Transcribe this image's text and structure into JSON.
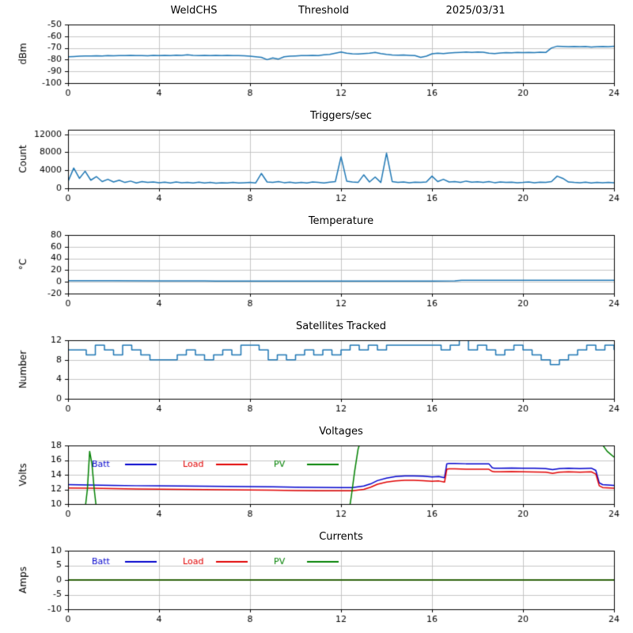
{
  "header": {
    "station": "WeldCHS",
    "mode": "Threshold",
    "date": "2025/03/31"
  },
  "colors": {
    "signal": "#1f77b4",
    "batt": "#0000cc",
    "load": "#e00000",
    "pv": "#008000",
    "grid": "#b8b8b8",
    "frame": "#000000"
  },
  "chart_data": [
    {
      "id": "dbm",
      "type": "line",
      "title": "",
      "ylabel": "dBm",
      "xlim": [
        0,
        24
      ],
      "ylim": [
        -100,
        -50
      ],
      "xticks": [
        0,
        4,
        8,
        12,
        16,
        20,
        24
      ],
      "yticks": [
        -100,
        -90,
        -80,
        -70,
        -60,
        -50
      ],
      "grid": true,
      "legend_show": false,
      "series": [
        {
          "name": "dBm",
          "color": "#1f77b4",
          "x0": 0,
          "dx": 0.25,
          "y": [
            -77.5,
            -77.3,
            -77.0,
            -76.8,
            -76.9,
            -76.7,
            -76.8,
            -76.6,
            -76.7,
            -76.5,
            -76.6,
            -76.4,
            -76.6,
            -76.5,
            -76.7,
            -76.4,
            -76.5,
            -76.3,
            -76.6,
            -76.2,
            -76.4,
            -75.9,
            -76.3,
            -76.5,
            -76.4,
            -76.6,
            -76.3,
            -76.5,
            -76.4,
            -76.6,
            -76.5,
            -76.7,
            -77.0,
            -77.5,
            -78.0,
            -80.0,
            -78.5,
            -79.5,
            -77.5,
            -77.0,
            -76.8,
            -76.5,
            -76.6,
            -76.4,
            -76.5,
            -75.8,
            -75.5,
            -74.5,
            -73.5,
            -74.5,
            -75.0,
            -75.2,
            -74.8,
            -74.5,
            -73.8,
            -74.8,
            -75.5,
            -76.0,
            -76.2,
            -76.0,
            -76.3,
            -76.5,
            -78.0,
            -77.0,
            -75.0,
            -74.5,
            -74.8,
            -74.3,
            -74.0,
            -73.8,
            -73.5,
            -73.8,
            -73.4,
            -73.6,
            -74.5,
            -74.8,
            -74.3,
            -74.0,
            -74.2,
            -73.8,
            -74.0,
            -73.8,
            -74.0,
            -73.7,
            -73.9,
            -70.0,
            -68.5,
            -68.8,
            -69.0,
            -68.7,
            -69.0,
            -68.8,
            -69.2,
            -69.0,
            -68.8,
            -69.0,
            -68.5
          ]
        }
      ]
    },
    {
      "id": "triggers",
      "type": "line",
      "title": "Triggers/sec",
      "ylabel": "Count",
      "xlim": [
        0,
        24
      ],
      "ylim": [
        0,
        13000
      ],
      "xticks": [
        0,
        4,
        8,
        12,
        16,
        20,
        24
      ],
      "yticks": [
        0,
        4000,
        8000,
        12000
      ],
      "grid": true,
      "legend_show": false,
      "series": [
        {
          "name": "Count",
          "color": "#1f77b4",
          "x0": 0,
          "dx": 0.25,
          "y": [
            1500,
            4500,
            2200,
            3800,
            1800,
            2600,
            1500,
            2000,
            1400,
            1800,
            1300,
            1600,
            1200,
            1500,
            1300,
            1400,
            1250,
            1350,
            1200,
            1400,
            1250,
            1300,
            1200,
            1350,
            1200,
            1300,
            1150,
            1250,
            1200,
            1300,
            1200,
            1250,
            1300,
            1200,
            3300,
            1400,
            1300,
            1500,
            1250,
            1350,
            1200,
            1300,
            1200,
            1400,
            1300,
            1200,
            1350,
            1500,
            7000,
            1600,
            1400,
            1300,
            3000,
            1400,
            2500,
            1300,
            7800,
            1500,
            1300,
            1400,
            1250,
            1350,
            1300,
            1400,
            2700,
            1500,
            2000,
            1400,
            1500,
            1300,
            1600,
            1350,
            1450,
            1300,
            1500,
            1250,
            1400,
            1300,
            1350,
            1250,
            1300,
            1400,
            1250,
            1350,
            1300,
            1500,
            2700,
            2200,
            1400,
            1300,
            1250,
            1350,
            1200,
            1300,
            1250,
            1300,
            1250
          ]
        }
      ]
    },
    {
      "id": "temperature",
      "type": "line",
      "title": "Temperature",
      "ylabel": "°C",
      "xlim": [
        0,
        24
      ],
      "ylim": [
        -20,
        80
      ],
      "xticks": [
        0,
        4,
        8,
        12,
        16,
        20,
        24
      ],
      "yticks": [
        -20,
        0,
        20,
        40,
        60,
        80
      ],
      "grid": true,
      "legend_show": false,
      "series": [
        {
          "name": "Temp",
          "color": "#1f77b4",
          "x": [
            0,
            2,
            4,
            6,
            6.5,
            7,
            12,
            16,
            17,
            17.3,
            17.6,
            20,
            22,
            24
          ],
          "y": [
            1.8,
            1.8,
            1.7,
            1.7,
            1.2,
            1.2,
            1.3,
            1.4,
            1.5,
            2.6,
            2.8,
            2.8,
            2.7,
            2.7
          ]
        }
      ]
    },
    {
      "id": "satellites",
      "type": "line",
      "title": "Satellites Tracked",
      "ylabel": "Number",
      "xlim": [
        0,
        24
      ],
      "ylim": [
        0,
        12
      ],
      "xticks": [
        0,
        4,
        8,
        12,
        16,
        20,
        24
      ],
      "yticks": [
        0,
        4,
        8,
        12
      ],
      "grid": true,
      "step": true,
      "legend_show": false,
      "series": [
        {
          "name": "Satellites",
          "color": "#1f77b4",
          "x": [
            0,
            0.4,
            0.8,
            1.2,
            1.6,
            2.0,
            2.4,
            2.8,
            3.2,
            3.6,
            4.4,
            4.8,
            5.2,
            5.6,
            6.0,
            6.4,
            6.8,
            7.2,
            7.6,
            8.0,
            8.4,
            8.8,
            9.2,
            9.6,
            10.0,
            10.4,
            10.8,
            11.2,
            11.6,
            12.0,
            12.4,
            12.8,
            13.2,
            13.6,
            14.0,
            14.4,
            15.2,
            16.0,
            16.4,
            16.8,
            17.2,
            17.6,
            18.0,
            18.4,
            18.8,
            19.2,
            19.6,
            20.0,
            20.4,
            20.8,
            21.2,
            21.6,
            22.0,
            22.4,
            22.8,
            23.2,
            23.6,
            24
          ],
          "y": [
            10,
            10,
            9,
            11,
            10,
            9,
            11,
            10,
            9,
            8,
            8,
            9,
            10,
            9,
            8,
            9,
            10,
            9,
            11,
            11,
            10,
            8,
            9,
            8,
            9,
            10,
            9,
            10,
            9,
            10,
            11,
            10,
            11,
            10,
            11,
            11,
            11,
            11,
            10,
            11,
            12,
            10,
            11,
            10,
            9,
            10,
            11,
            10,
            9,
            8,
            7,
            8,
            9,
            10,
            11,
            10,
            11,
            10
          ]
        }
      ]
    },
    {
      "id": "voltages",
      "type": "line",
      "title": "Voltages",
      "ylabel": "Volts",
      "xlim": [
        0,
        24
      ],
      "ylim": [
        10,
        18
      ],
      "xticks": [
        0,
        4,
        8,
        12,
        16,
        20,
        24
      ],
      "yticks": [
        10,
        12,
        14,
        16,
        18
      ],
      "grid": true,
      "legend_show": true,
      "legend_position": "upper-left-inside",
      "legend_row": "low",
      "series": [
        {
          "name": "Batt",
          "color": "#0000cc",
          "x": [
            0,
            1,
            2,
            3,
            4,
            5,
            6,
            7,
            8,
            9,
            10,
            11,
            12,
            12.5,
            13,
            13.3,
            13.6,
            14,
            14.4,
            14.8,
            15.2,
            15.6,
            16,
            16.3,
            16.55,
            16.65,
            16.75,
            17,
            17.5,
            18,
            18.5,
            18.65,
            18.75,
            19,
            19.5,
            20,
            20.5,
            21,
            21.3,
            21.6,
            22,
            22.5,
            23,
            23.2,
            23.35,
            23.5,
            24
          ],
          "y": [
            12.65,
            12.6,
            12.55,
            12.5,
            12.48,
            12.45,
            12.42,
            12.4,
            12.38,
            12.35,
            12.3,
            12.28,
            12.25,
            12.25,
            12.45,
            12.75,
            13.2,
            13.55,
            13.75,
            13.85,
            13.85,
            13.8,
            13.7,
            13.75,
            13.6,
            15.5,
            15.55,
            15.55,
            15.5,
            15.5,
            15.5,
            14.95,
            14.9,
            14.9,
            14.92,
            14.9,
            14.88,
            14.85,
            14.7,
            14.85,
            14.9,
            14.85,
            14.9,
            14.6,
            12.9,
            12.65,
            12.55
          ]
        },
        {
          "name": "Load",
          "color": "#e00000",
          "x": [
            0,
            1,
            2,
            3,
            4,
            5,
            6,
            7,
            8,
            9,
            10,
            11,
            12,
            12.5,
            13,
            13.3,
            13.6,
            14,
            14.4,
            14.8,
            15.2,
            15.6,
            16,
            16.3,
            16.55,
            16.65,
            16.75,
            17,
            17.5,
            18,
            18.5,
            18.65,
            18.75,
            19,
            19.5,
            20,
            20.5,
            21,
            21.3,
            21.6,
            22,
            22.5,
            23,
            23.2,
            23.35,
            23.5,
            24
          ],
          "y": [
            12.2,
            12.15,
            12.1,
            12.05,
            12.02,
            12.0,
            11.97,
            11.95,
            11.92,
            11.9,
            11.85,
            11.82,
            11.8,
            11.8,
            12.0,
            12.3,
            12.7,
            13.0,
            13.15,
            13.25,
            13.25,
            13.2,
            13.1,
            13.15,
            13.0,
            14.75,
            14.8,
            14.8,
            14.75,
            14.75,
            14.75,
            14.45,
            14.4,
            14.4,
            14.42,
            14.4,
            14.38,
            14.35,
            14.2,
            14.35,
            14.4,
            14.35,
            14.4,
            14.1,
            12.5,
            12.25,
            12.15
          ]
        },
        {
          "name": "PV",
          "color": "#008000",
          "x": [
            0,
            0.7,
            0.85,
            0.95,
            1.05,
            1.15,
            1.3,
            1.5,
            12.3,
            12.45,
            12.6,
            12.75,
            12.9,
            13.1,
            23.1,
            23.4,
            23.7,
            24
          ],
          "y": [
            8,
            8,
            12,
            17.2,
            15.5,
            12,
            8,
            8,
            8,
            11,
            14.5,
            17.5,
            19,
            19.5,
            19.5,
            18.5,
            17.2,
            16.4
          ]
        }
      ]
    },
    {
      "id": "currents",
      "type": "line",
      "title": "Currents",
      "ylabel": "Amps",
      "xlim": [
        0,
        24
      ],
      "ylim": [
        -10,
        10
      ],
      "xticks": [
        0,
        4,
        8,
        12,
        16,
        20,
        24
      ],
      "yticks": [
        -10,
        -5,
        0,
        5,
        10
      ],
      "grid": true,
      "legend_show": true,
      "legend_position": "upper-left-inside",
      "legend_row": "high",
      "series": [
        {
          "name": "Batt",
          "color": "#0000cc",
          "x": [
            0,
            24
          ],
          "y": [
            0,
            0
          ]
        },
        {
          "name": "Load",
          "color": "#e00000",
          "x": [
            0,
            24
          ],
          "y": [
            0,
            0
          ]
        },
        {
          "name": "PV",
          "color": "#008000",
          "x": [
            0,
            24
          ],
          "y": [
            0,
            0
          ]
        }
      ]
    }
  ]
}
